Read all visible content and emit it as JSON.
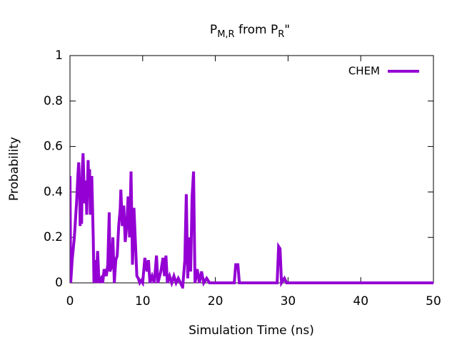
{
  "chart_data": {
    "type": "line",
    "title": [
      "P",
      "M,R",
      " from P",
      "R",
      "\""
    ],
    "x_label": "Simulation Time (ns)",
    "y_label": "Probability",
    "xlim": [
      0,
      50
    ],
    "xticks": [
      0,
      10,
      20,
      30,
      40,
      50
    ],
    "ylim": [
      0,
      1
    ],
    "yticks": [
      0,
      0.2,
      0.4,
      0.6,
      0.8,
      1
    ],
    "legend": "top-right",
    "x": [
      0.0,
      0.1,
      0.3,
      0.6,
      0.9,
      1.1,
      1.2,
      1.3,
      1.4,
      1.5,
      1.6,
      1.7,
      1.8,
      2.0,
      2.2,
      2.3,
      2.5,
      2.6,
      2.7,
      2.8,
      3.0,
      3.2,
      3.3,
      3.5,
      3.6,
      3.8,
      4.0,
      4.3,
      4.5,
      4.7,
      5.0,
      5.2,
      5.4,
      5.5,
      5.7,
      5.9,
      6.1,
      6.3,
      6.5,
      6.7,
      6.9,
      7.0,
      7.2,
      7.4,
      7.6,
      7.8,
      8.0,
      8.2,
      8.4,
      8.6,
      8.8,
      9.0,
      9.2,
      9.4,
      9.6,
      9.8,
      10.0,
      10.3,
      10.6,
      10.8,
      11.0,
      11.3,
      11.6,
      11.9,
      12.1,
      12.5,
      12.8,
      13.0,
      13.2,
      13.4,
      13.7,
      14.0,
      14.3,
      14.6,
      14.9,
      15.2,
      15.5,
      15.8,
      16.0,
      16.2,
      16.4,
      16.6,
      16.8,
      17.0,
      17.2,
      17.5,
      17.8,
      18.1,
      18.4,
      18.8,
      19.2,
      22.6,
      22.8,
      23.1,
      23.3,
      28.5,
      28.7,
      28.9,
      29.1,
      29.5,
      29.8,
      50
    ],
    "series": [
      {
        "name": "CHEM",
        "color": "#9400d3",
        "values": [
          0.47,
          0.0,
          0.1,
          0.2,
          0.35,
          0.48,
          0.53,
          0.45,
          0.25,
          0.4,
          0.26,
          0.5,
          0.57,
          0.35,
          0.45,
          0.3,
          0.54,
          0.4,
          0.5,
          0.3,
          0.47,
          0.2,
          0.0,
          0.1,
          0.0,
          0.14,
          0.0,
          0.02,
          0.0,
          0.06,
          0.03,
          0.08,
          0.31,
          0.05,
          0.07,
          0.2,
          0.0,
          0.1,
          0.12,
          0.25,
          0.32,
          0.41,
          0.25,
          0.34,
          0.18,
          0.25,
          0.38,
          0.2,
          0.49,
          0.08,
          0.33,
          0.18,
          0.03,
          0.02,
          0.0,
          0.01,
          0.0,
          0.11,
          0.05,
          0.1,
          0.0,
          0.03,
          0.0,
          0.12,
          0.0,
          0.05,
          0.11,
          0.03,
          0.12,
          0.0,
          0.03,
          0.0,
          0.03,
          0.0,
          0.02,
          0.0,
          -0.02,
          0.1,
          0.39,
          0.02,
          0.2,
          0.05,
          0.38,
          0.49,
          0.0,
          0.06,
          0.0,
          0.05,
          0.0,
          0.02,
          0.0,
          0.0,
          0.08,
          0.08,
          0.0,
          0.0,
          0.16,
          0.15,
          0.0,
          0.02,
          0.0,
          0.0
        ]
      }
    ]
  }
}
